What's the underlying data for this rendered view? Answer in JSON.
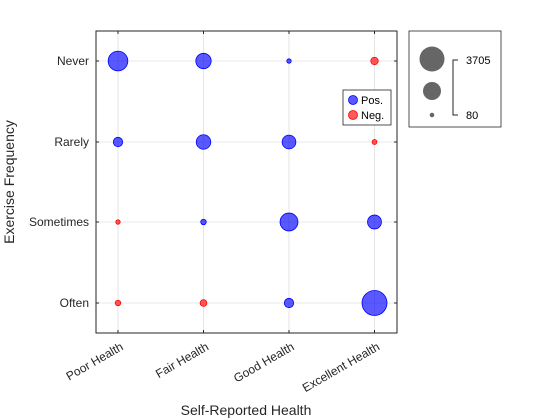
{
  "chart_data": {
    "type": "scatter",
    "subtype": "bubble",
    "title": "",
    "xlabel": "Self-Reported Health",
    "ylabel": "Exercise Frequency",
    "x_categories": [
      "Poor Health",
      "Fair Health",
      "Good Health",
      "Excellent Health"
    ],
    "y_categories": [
      "Often",
      "Sometimes",
      "Rarely",
      "Never"
    ],
    "grid": true,
    "legend": {
      "placement": "inside-top-right",
      "entries": [
        {
          "name": "Pos.",
          "color": "#0000ff"
        },
        {
          "name": "Neg.",
          "color": "#ff0000"
        }
      ]
    },
    "size_legend": {
      "placement": "outside-right",
      "max_label": "3705",
      "min_label": "80",
      "max": 3705,
      "min": 80
    },
    "colors": {
      "pos": "#0000ff",
      "neg": "#ff0000",
      "grid": "#e0e0e0",
      "axis": "#262626",
      "size_marker": "#666666"
    },
    "points": [
      {
        "x": "Poor Health",
        "y": "Never",
        "value": 2300,
        "sign": "pos"
      },
      {
        "x": "Fair Health",
        "y": "Never",
        "value": 1400,
        "sign": "pos"
      },
      {
        "x": "Good Health",
        "y": "Never",
        "value": 80,
        "sign": "pos"
      },
      {
        "x": "Excellent Health",
        "y": "Never",
        "value": 330,
        "sign": "neg"
      },
      {
        "x": "Poor Health",
        "y": "Rarely",
        "value": 520,
        "sign": "pos"
      },
      {
        "x": "Fair Health",
        "y": "Rarely",
        "value": 1250,
        "sign": "pos"
      },
      {
        "x": "Good Health",
        "y": "Rarely",
        "value": 1120,
        "sign": "pos"
      },
      {
        "x": "Excellent Health",
        "y": "Rarely",
        "value": 140,
        "sign": "neg"
      },
      {
        "x": "Poor Health",
        "y": "Sometimes",
        "value": 100,
        "sign": "neg"
      },
      {
        "x": "Fair Health",
        "y": "Sometimes",
        "value": 180,
        "sign": "pos"
      },
      {
        "x": "Good Health",
        "y": "Sometimes",
        "value": 1900,
        "sign": "pos"
      },
      {
        "x": "Excellent Health",
        "y": "Sometimes",
        "value": 1150,
        "sign": "pos"
      },
      {
        "x": "Poor Health",
        "y": "Often",
        "value": 180,
        "sign": "neg"
      },
      {
        "x": "Fair Health",
        "y": "Often",
        "value": 270,
        "sign": "neg"
      },
      {
        "x": "Good Health",
        "y": "Often",
        "value": 520,
        "sign": "pos"
      },
      {
        "x": "Excellent Health",
        "y": "Often",
        "value": 3705,
        "sign": "pos"
      }
    ]
  }
}
